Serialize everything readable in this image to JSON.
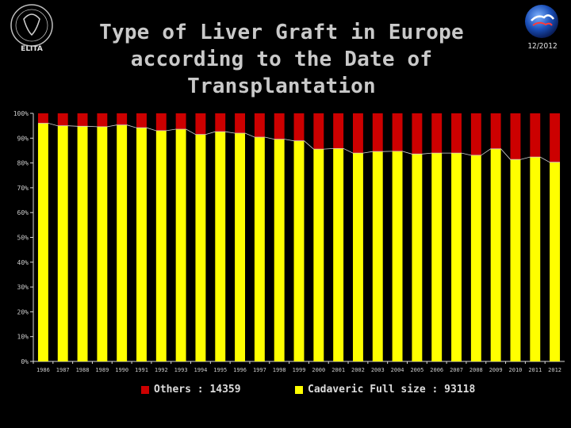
{
  "header": {
    "title_line1": "Type of Liver Graft in Europe",
    "title_line2": "according to the Date of Transplantation",
    "date": "12/2012",
    "logo_left_text": "ELITA"
  },
  "legend": {
    "others_label": "Others : 14359",
    "cadaveric_label": "Cadaveric Full size : 93118"
  },
  "colors": {
    "others": "#cc0000",
    "cadaveric": "#ffff00",
    "background": "#000000",
    "axis_text": "#cccccc"
  },
  "chart_data": {
    "type": "bar",
    "stacked": true,
    "title": "Type of Liver Graft in Europe according to the Date of Transplantation",
    "categories": [
      "1986",
      "1987",
      "1988",
      "1989",
      "1990",
      "1991",
      "1992",
      "1993",
      "1994",
      "1995",
      "1996",
      "1997",
      "1998",
      "1999",
      "2000",
      "2001",
      "2002",
      "2003",
      "2004",
      "2005",
      "2006",
      "2007",
      "2008",
      "2009",
      "2010",
      "2011",
      "2012"
    ],
    "series": [
      {
        "name": "Cadaveric Full size : 93118",
        "color": "#ffff00",
        "values": [
          96,
          95,
          94.8,
          94.6,
          95.3,
          94.2,
          93,
          93.6,
          91.5,
          92.6,
          92,
          90.4,
          89.6,
          88.9,
          85.6,
          85.8,
          84,
          84.6,
          84.7,
          83.6,
          84,
          84,
          83.1,
          85.7,
          81.4,
          82.4,
          80.3
        ]
      },
      {
        "name": "Others : 14359",
        "color": "#cc0000",
        "values": [
          4,
          5,
          5.2,
          5.4,
          4.7,
          5.8,
          7,
          6.4,
          8.5,
          7.4,
          8,
          9.6,
          10.4,
          11.1,
          14.4,
          14.2,
          16,
          15.4,
          15.3,
          16.4,
          16,
          16,
          16.9,
          14.3,
          18.6,
          17.6,
          19.7
        ]
      }
    ],
    "ylim": [
      0,
      100
    ],
    "yticks": [
      "0%",
      "10%",
      "20%",
      "30%",
      "40%",
      "50%",
      "60%",
      "70%",
      "80%",
      "90%",
      "100%"
    ],
    "legend_position": "bottom",
    "grid": false
  }
}
